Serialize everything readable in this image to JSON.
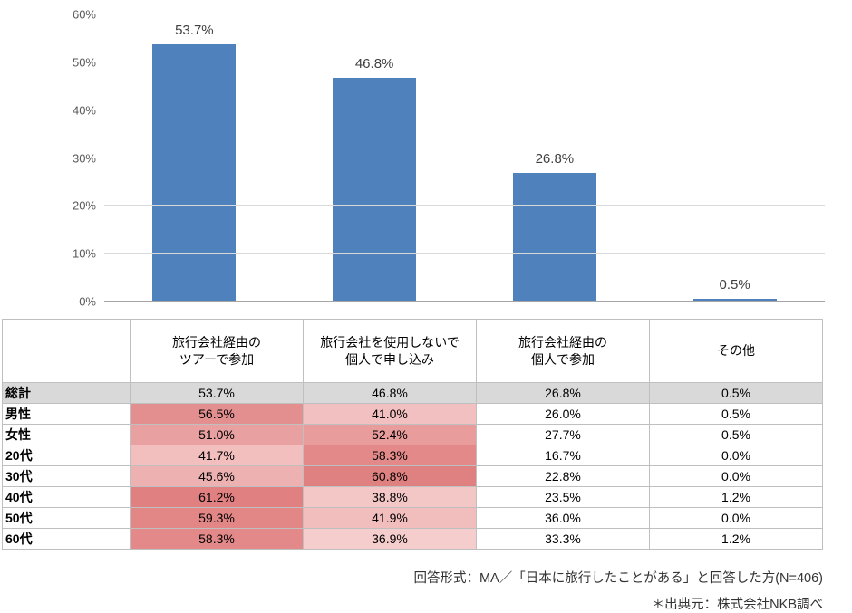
{
  "chart_data": {
    "type": "bar",
    "title": "",
    "categories": [
      "旅行会社経由のツアーで参加",
      "旅行会社を使用しないで個人で申し込み",
      "旅行会社経由の個人で参加",
      "その他"
    ],
    "values": [
      53.7,
      46.8,
      26.8,
      0.5
    ],
    "labels": [
      "53.7%",
      "46.8%",
      "26.8%",
      "0.5%"
    ],
    "ylim": [
      0,
      60
    ],
    "yticks": [
      0,
      10,
      20,
      30,
      40,
      50,
      60
    ],
    "ytick_labels": [
      "0%",
      "10%",
      "20%",
      "30%",
      "40%",
      "50%",
      "60%"
    ],
    "grid": true,
    "legend": "none",
    "bar_color": "#4f81bd"
  },
  "table": {
    "columns": [
      "旅行会社経由の\nツアーで参加",
      "旅行会社を使用しないで\n個人で申し込み",
      "旅行会社経由の\n個人で参加",
      "その他"
    ],
    "rows": [
      {
        "label": "総計",
        "values": [
          "53.7%",
          "46.8%",
          "26.8%",
          "0.5%"
        ],
        "row_bg": "#d9d9d9",
        "colors": [
          "#d9d9d9",
          "#d9d9d9",
          "#d9d9d9",
          "#d9d9d9"
        ]
      },
      {
        "label": "男性",
        "values": [
          "56.5%",
          "41.0%",
          "26.0%",
          "0.5%"
        ],
        "colors": [
          "#e48f8f",
          "#f2c0c0",
          "",
          ""
        ]
      },
      {
        "label": "女性",
        "values": [
          "51.0%",
          "52.4%",
          "27.7%",
          "0.5%"
        ],
        "colors": [
          "#e9a0a0",
          "#e89c9c",
          "",
          ""
        ]
      },
      {
        "label": "20代",
        "values": [
          "41.7%",
          "58.3%",
          "16.7%",
          "0.0%"
        ],
        "colors": [
          "#f2bebe",
          "#e38989",
          "",
          ""
        ]
      },
      {
        "label": "30代",
        "values": [
          "45.6%",
          "60.8%",
          "22.8%",
          "0.0%"
        ],
        "colors": [
          "#eeb1b1",
          "#e08181",
          "",
          ""
        ]
      },
      {
        "label": "40代",
        "values": [
          "61.2%",
          "38.8%",
          "23.5%",
          "1.2%"
        ],
        "colors": [
          "#e08080",
          "#f4c7c7",
          "",
          ""
        ]
      },
      {
        "label": "50代",
        "values": [
          "59.3%",
          "41.9%",
          "36.0%",
          "0.0%"
        ],
        "colors": [
          "#e28686",
          "#f1bdbd",
          "",
          ""
        ]
      },
      {
        "label": "60代",
        "values": [
          "58.3%",
          "36.9%",
          "33.3%",
          "1.2%"
        ],
        "colors": [
          "#e38989",
          "#f6cdcd",
          "",
          ""
        ]
      }
    ]
  },
  "footer": {
    "line1": "回答形式：MA／「日本に旅行したことがある」と回答した方(N=406)",
    "line2": "＊出典元：株式会社NKB調べ"
  }
}
